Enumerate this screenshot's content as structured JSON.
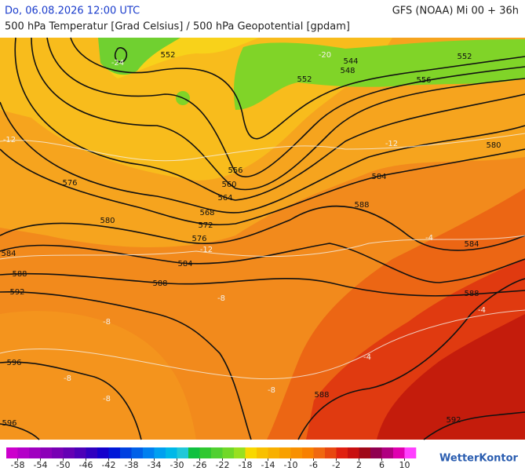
{
  "header": {
    "date": "Do, 06.08.2026 12:00 UTC",
    "model": "GFS (NOAA) Mi 00 + 36h",
    "subtitle": "500 hPa Temperatur [Grad Celsius] / 500 hPa Geopotential [gpdam]"
  },
  "map": {
    "contour_labels": [
      "552",
      "544",
      "548",
      "552",
      "552",
      "556",
      "580",
      "584",
      "588",
      "576",
      "580",
      "584",
      "588",
      "592",
      "556",
      "560",
      "564",
      "568",
      "572",
      "576",
      "584",
      "588",
      "588",
      "596",
      "596",
      "584",
      "588",
      "592"
    ],
    "isotherm_labels": [
      "-24",
      "-20",
      "-12",
      "-12",
      "-12",
      "-8",
      "-8",
      "-8",
      "-8",
      "-8",
      "-4",
      "-4",
      "-4"
    ]
  },
  "colorbar": {
    "ticks": [
      -58,
      -54,
      -50,
      -46,
      -42,
      -38,
      -34,
      -30,
      -26,
      -22,
      -18,
      -14,
      -10,
      -6,
      -2,
      2,
      6,
      10
    ],
    "colors": [
      "#cc00cc",
      "#b400c8",
      "#a000c0",
      "#8c00b8",
      "#7800b4",
      "#6400b4",
      "#4c00b8",
      "#3000c0",
      "#1400cc",
      "#0018d8",
      "#0040e0",
      "#0060e8",
      "#0080f0",
      "#00a0f0",
      "#00b8e8",
      "#20c8d8",
      "#10c040",
      "#30c830",
      "#50d030",
      "#70d828",
      "#98e020",
      "#f8d800",
      "#f8c000",
      "#f8b000",
      "#f8a000",
      "#f89000",
      "#f88000",
      "#f06810",
      "#e84810",
      "#e02010",
      "#c81010",
      "#a00818",
      "#900050",
      "#b00080",
      "#e000b0",
      "#ff40ff"
    ]
  },
  "logo": "WetterKontor"
}
